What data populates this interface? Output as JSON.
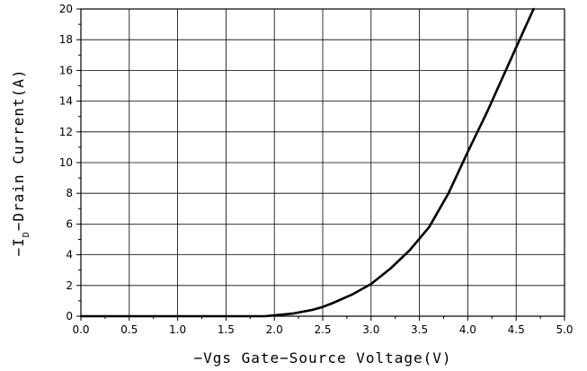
{
  "chart_data": {
    "type": "line",
    "title": "",
    "xlabel": "−Vgs Gate−Source Voltage(V)",
    "ylabel_prefix": "−I",
    "ylabel_subscript": "D",
    "ylabel_suffix": "−Drain Current(A)",
    "xlim": [
      0,
      5
    ],
    "ylim": [
      0,
      20
    ],
    "x_ticks": [
      "0.0",
      "0.5",
      "1.0",
      "1.5",
      "2.0",
      "2.5",
      "3.0",
      "3.5",
      "4.0",
      "4.5",
      "5.0"
    ],
    "y_ticks": [
      "0",
      "2",
      "4",
      "6",
      "8",
      "10",
      "12",
      "14",
      "16",
      "18",
      "20"
    ],
    "grid": true,
    "series": [
      {
        "x": [
          0.0,
          0.5,
          1.0,
          1.5,
          1.9,
          2.0,
          2.2,
          2.4,
          2.5,
          2.6,
          2.8,
          3.0,
          3.2,
          3.4,
          3.6,
          3.8,
          4.0,
          4.2,
          4.4,
          4.6,
          4.68
        ],
        "y": [
          0,
          0,
          0,
          0,
          0,
          0.05,
          0.18,
          0.42,
          0.6,
          0.85,
          1.4,
          2.1,
          3.1,
          4.3,
          5.8,
          8.0,
          10.7,
          13.3,
          16.1,
          18.9,
          20
        ]
      }
    ]
  }
}
